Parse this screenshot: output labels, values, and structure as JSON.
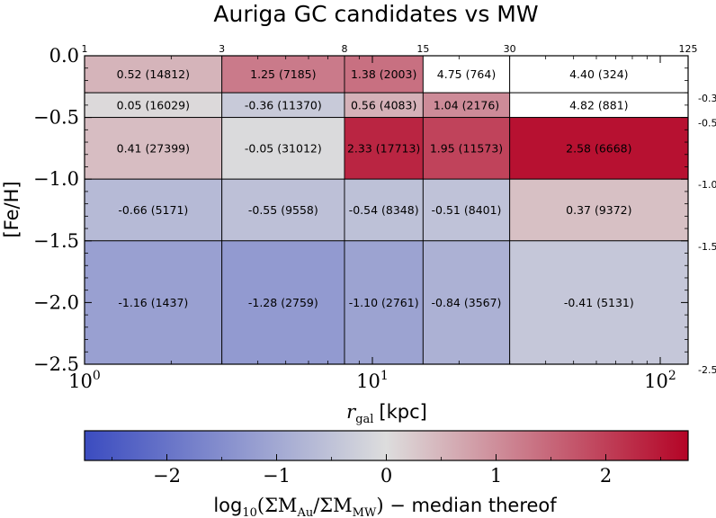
{
  "chart_data": {
    "type": "heatmap",
    "title": "Auriga GC candidates vs MW",
    "xlabel_symbol": "r",
    "xlabel_sub": "gal",
    "xlabel_unit": "[kpc]",
    "ylabel": "[Fe/H]",
    "x_scale": "log",
    "xlim": [
      1,
      125
    ],
    "ylim": [
      -2.5,
      0.0
    ],
    "x_bin_edges": [
      1,
      3,
      8,
      15,
      30,
      125
    ],
    "y_bin_edges": [
      0.0,
      -0.3,
      -0.5,
      -1.0,
      -1.5,
      -2.5
    ],
    "x_top_tick_labels": [
      "1",
      "3",
      "8",
      "15",
      "30",
      "125"
    ],
    "y_right_tick_labels": [
      "-0.3",
      "-0.5",
      "-1.0",
      "-1.5",
      "-2.5"
    ],
    "y_ticks": [
      {
        "value": 0.0,
        "label": "0.0"
      },
      {
        "value": -0.5,
        "label": "−0.5"
      },
      {
        "value": -1.0,
        "label": "−1.0"
      },
      {
        "value": -1.5,
        "label": "−1.5"
      },
      {
        "value": -2.0,
        "label": "−2.0"
      },
      {
        "value": -2.5,
        "label": "−2.5"
      }
    ],
    "x_ticks": [
      {
        "value": 1,
        "base": "10",
        "exp": "0"
      },
      {
        "value": 10,
        "base": "10",
        "exp": "1"
      },
      {
        "value": 100,
        "base": "10",
        "exp": "2"
      }
    ],
    "cells": [
      {
        "x": [
          1,
          3
        ],
        "y": [
          0.0,
          -0.3
        ],
        "value": 0.52,
        "count": 14812,
        "label": "0.52 (14812)"
      },
      {
        "x": [
          3,
          8
        ],
        "y": [
          0.0,
          -0.3
        ],
        "value": 1.25,
        "count": 7185,
        "label": "1.25 (7185)"
      },
      {
        "x": [
          8,
          15
        ],
        "y": [
          0.0,
          -0.3
        ],
        "value": 1.38,
        "count": 2003,
        "label": "1.38 (2003)"
      },
      {
        "x": [
          15,
          30
        ],
        "y": [
          0.0,
          -0.3
        ],
        "value": 4.75,
        "count": 764,
        "label": "4.75 (764)"
      },
      {
        "x": [
          30,
          125
        ],
        "y": [
          0.0,
          -0.3
        ],
        "value": 4.4,
        "count": 324,
        "label": "4.40 (324)"
      },
      {
        "x": [
          1,
          3
        ],
        "y": [
          -0.3,
          -0.5
        ],
        "value": 0.05,
        "count": 16029,
        "label": "0.05 (16029)"
      },
      {
        "x": [
          3,
          8
        ],
        "y": [
          -0.3,
          -0.5
        ],
        "value": -0.36,
        "count": 11370,
        "label": "-0.36 (11370)"
      },
      {
        "x": [
          8,
          15
        ],
        "y": [
          -0.3,
          -0.5
        ],
        "value": 0.56,
        "count": 4083,
        "label": "0.56 (4083)"
      },
      {
        "x": [
          15,
          30
        ],
        "y": [
          -0.3,
          -0.5
        ],
        "value": 1.04,
        "count": 2176,
        "label": "1.04 (2176)"
      },
      {
        "x": [
          30,
          125
        ],
        "y": [
          -0.3,
          -0.5
        ],
        "value": 4.82,
        "count": 881,
        "label": "4.82 (881)"
      },
      {
        "x": [
          1,
          3
        ],
        "y": [
          -0.5,
          -1.0
        ],
        "value": 0.41,
        "count": 27399,
        "label": "0.41 (27399)"
      },
      {
        "x": [
          3,
          8
        ],
        "y": [
          -0.5,
          -1.0
        ],
        "value": -0.05,
        "count": 31012,
        "label": "-0.05 (31012)"
      },
      {
        "x": [
          8,
          15
        ],
        "y": [
          -0.5,
          -1.0
        ],
        "value": 2.33,
        "count": 17713,
        "label": "2.33 (17713)"
      },
      {
        "x": [
          15,
          30
        ],
        "y": [
          -0.5,
          -1.0
        ],
        "value": 1.95,
        "count": 11573,
        "label": "1.95 (11573)"
      },
      {
        "x": [
          30,
          125
        ],
        "y": [
          -0.5,
          -1.0
        ],
        "value": 2.58,
        "count": 6668,
        "label": "2.58 (6668)"
      },
      {
        "x": [
          1,
          3
        ],
        "y": [
          -1.0,
          -1.5
        ],
        "value": -0.66,
        "count": 5171,
        "label": "-0.66 (5171)"
      },
      {
        "x": [
          3,
          8
        ],
        "y": [
          -1.0,
          -1.5
        ],
        "value": -0.55,
        "count": 9558,
        "label": "-0.55 (9558)"
      },
      {
        "x": [
          8,
          15
        ],
        "y": [
          -1.0,
          -1.5
        ],
        "value": -0.54,
        "count": 8348,
        "label": "-0.54 (8348)"
      },
      {
        "x": [
          15,
          30
        ],
        "y": [
          -1.0,
          -1.5
        ],
        "value": -0.51,
        "count": 8401,
        "label": "-0.51 (8401)"
      },
      {
        "x": [
          30,
          125
        ],
        "y": [
          -1.0,
          -1.5
        ],
        "value": 0.37,
        "count": 9372,
        "label": "0.37 (9372)"
      },
      {
        "x": [
          1,
          3
        ],
        "y": [
          -1.5,
          -2.5
        ],
        "value": -1.16,
        "count": 1437,
        "label": "-1.16 (1437)"
      },
      {
        "x": [
          3,
          8
        ],
        "y": [
          -1.5,
          -2.5
        ],
        "value": -1.28,
        "count": 2759,
        "label": "-1.28 (2759)"
      },
      {
        "x": [
          8,
          15
        ],
        "y": [
          -1.5,
          -2.5
        ],
        "value": -1.1,
        "count": 2761,
        "label": "-1.10 (2761)"
      },
      {
        "x": [
          15,
          30
        ],
        "y": [
          -1.5,
          -2.5
        ],
        "value": -0.84,
        "count": 3567,
        "label": "-0.84 (3567)"
      },
      {
        "x": [
          30,
          125
        ],
        "y": [
          -1.5,
          -2.5
        ],
        "value": -0.41,
        "count": 5131,
        "label": "-0.41 (5131)"
      }
    ],
    "colorbar": {
      "cmap": "coolwarm",
      "range": [
        -2.75,
        2.75
      ],
      "colors": [
        "#3b4cc0",
        "#dddddd",
        "#b40426"
      ],
      "ticks": [
        {
          "value": -2,
          "label": "−2"
        },
        {
          "value": -1,
          "label": "−1"
        },
        {
          "value": 0,
          "label": "0"
        },
        {
          "value": 1,
          "label": "1"
        },
        {
          "value": 2,
          "label": "2"
        }
      ],
      "label_prefix": "log",
      "label_prefix_sub": "10",
      "label_num": "(ΣM",
      "label_num_sub": "Au",
      "label_den": "/ΣM",
      "label_den_sub": "MW",
      "label_close": ")",
      "label_suffix": " − median thereof"
    }
  }
}
